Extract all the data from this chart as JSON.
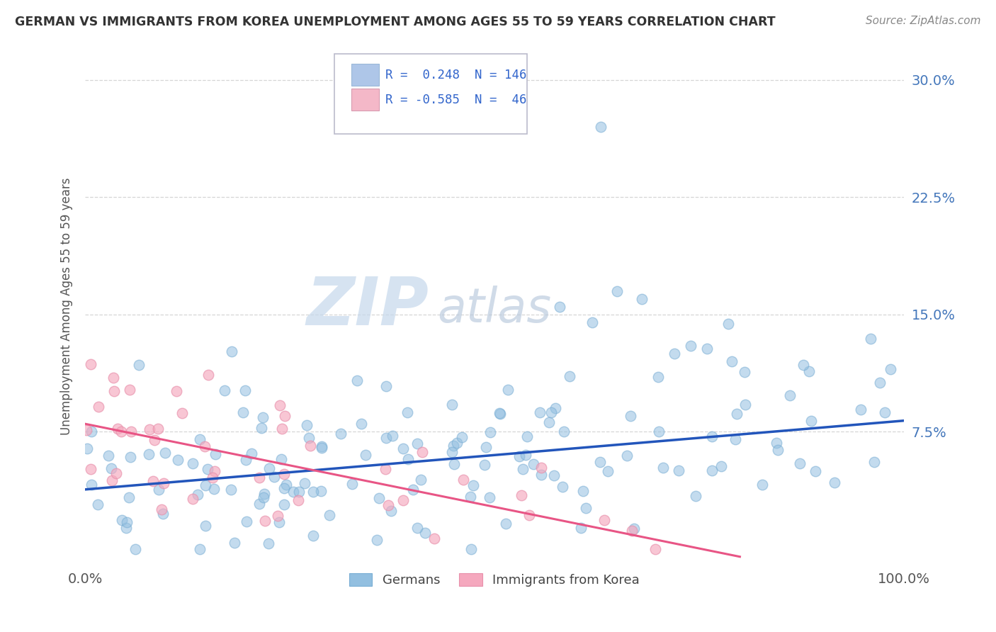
{
  "title": "GERMAN VS IMMIGRANTS FROM KOREA UNEMPLOYMENT AMONG AGES 55 TO 59 YEARS CORRELATION CHART",
  "source": "Source: ZipAtlas.com",
  "ylabel": "Unemployment Among Ages 55 to 59 years",
  "xlim": [
    0,
    100
  ],
  "ylim": [
    -1,
    32
  ],
  "ytick_vals": [
    0,
    7.5,
    15.0,
    22.5,
    30.0
  ],
  "ytick_labels": [
    "",
    "7.5%",
    "15.0%",
    "22.5%",
    "30.0%"
  ],
  "xtick_vals": [
    0,
    100
  ],
  "xtick_labels": [
    "0.0%",
    "100.0%"
  ],
  "german_color": "#92bfe0",
  "german_edge_color": "#7aaed4",
  "korean_color": "#f5a8be",
  "korean_edge_color": "#e890ab",
  "german_line_color": "#2255bb",
  "korean_line_color": "#e85585",
  "watermark_zip": "ZIP",
  "watermark_atlas": "atlas",
  "watermark_color": "#c5d8ec",
  "watermark_color2": "#c8cfe0",
  "legend_R_color": "#3366cc",
  "legend_text_color": "#222222",
  "legend_box_color": "#aec6e8",
  "legend_pink_color": "#f4b8c8",
  "title_color": "#333333",
  "source_color": "#888888",
  "ylabel_color": "#555555",
  "tick_color": "#4477bb",
  "grid_color": "#cccccc",
  "background": "#ffffff",
  "german_line_x": [
    0,
    100
  ],
  "german_line_y": [
    3.8,
    8.2
  ],
  "korean_line_x": [
    0,
    80
  ],
  "korean_line_y": [
    8.0,
    -0.5
  ]
}
